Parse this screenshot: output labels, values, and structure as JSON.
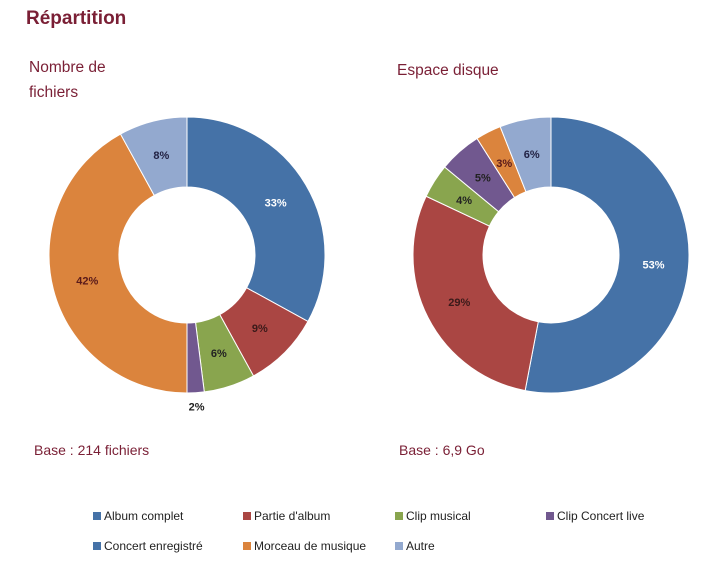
{
  "title": "Répartition",
  "chart_data": [
    {
      "type": "pie",
      "subtype": "donut",
      "title": "Nombre de fichiers",
      "title_lines": [
        "Nombre de",
        "fichiers"
      ],
      "base": "Base : 214 fichiers",
      "categories": [
        "Album complet",
        "Partie d'album",
        "Clip musical",
        "Clip Concert live",
        "Concert enregistré",
        "Morceau de musique",
        "Autre"
      ],
      "values": [
        33,
        9,
        6,
        2,
        0,
        42,
        8
      ],
      "labels": [
        "33%",
        "9%",
        "6%",
        "2%",
        "",
        "42%",
        "8%"
      ],
      "unit": "%"
    },
    {
      "type": "pie",
      "subtype": "donut",
      "title": "Espace disque",
      "title_lines": [
        "Espace disque"
      ],
      "base": "Base : 6,9 Go",
      "categories": [
        "Album complet",
        "Partie d'album",
        "Clip musical",
        "Clip Concert live",
        "Concert enregistré",
        "Morceau de musique",
        "Autre"
      ],
      "values": [
        53,
        29,
        4,
        5,
        0,
        3,
        6
      ],
      "labels": [
        "53%",
        "29%",
        "4%",
        "5%",
        "",
        "3%",
        "6%"
      ],
      "unit": "%"
    }
  ],
  "legend": [
    {
      "label": "Album complet",
      "color": "#4572a7"
    },
    {
      "label": "Partie d'album",
      "color": "#aa4643"
    },
    {
      "label": "Clip musical",
      "color": "#89a54e"
    },
    {
      "label": "Clip Concert live",
      "color": "#71588f"
    },
    {
      "label": "Concert enregistré",
      "color": "#4572a7"
    },
    {
      "label": "Morceau de musique",
      "color": "#db843d"
    },
    {
      "label": "Autre",
      "color": "#93a9cf"
    }
  ],
  "label_colors": [
    "#ffffff",
    "#3b1a1a",
    "#222222",
    "#222222",
    "#222222",
    "#5a1a1a",
    "#222244"
  ]
}
